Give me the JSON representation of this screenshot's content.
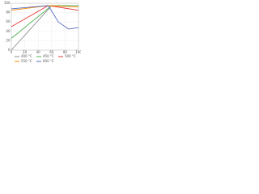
{
  "chart_data": {
    "type": "line",
    "xlim": [
      0,
      100
    ],
    "xticks": [
      0,
      20,
      40,
      60,
      80,
      100
    ],
    "ylim": [
      0,
      100
    ],
    "yticks": [
      0,
      20,
      40,
      60,
      80,
      100
    ],
    "grid": true,
    "legend": "bottom",
    "series": [
      {
        "name": "400 °C",
        "color": "#8c8c8c",
        "x": [
          0,
          60,
          100
        ],
        "values": [
          0,
          95,
          95
        ]
      },
      {
        "name": "450 °C",
        "color": "#4caf50",
        "x": [
          0,
          60,
          100
        ],
        "values": [
          25,
          95,
          95
        ]
      },
      {
        "name": "500 °C",
        "color": "#e53935",
        "x": [
          0,
          55,
          100
        ],
        "values": [
          50,
          95,
          85
        ]
      },
      {
        "name": "550 °C",
        "color": "#fb8c00",
        "x": [
          0,
          55,
          100
        ],
        "values": [
          85,
          95,
          92
        ]
      },
      {
        "name": "600 °C",
        "color": "#5c6bc0",
        "x": [
          0,
          55,
          70,
          85,
          100
        ],
        "values": [
          88,
          95,
          60,
          45,
          48
        ]
      }
    ]
  }
}
